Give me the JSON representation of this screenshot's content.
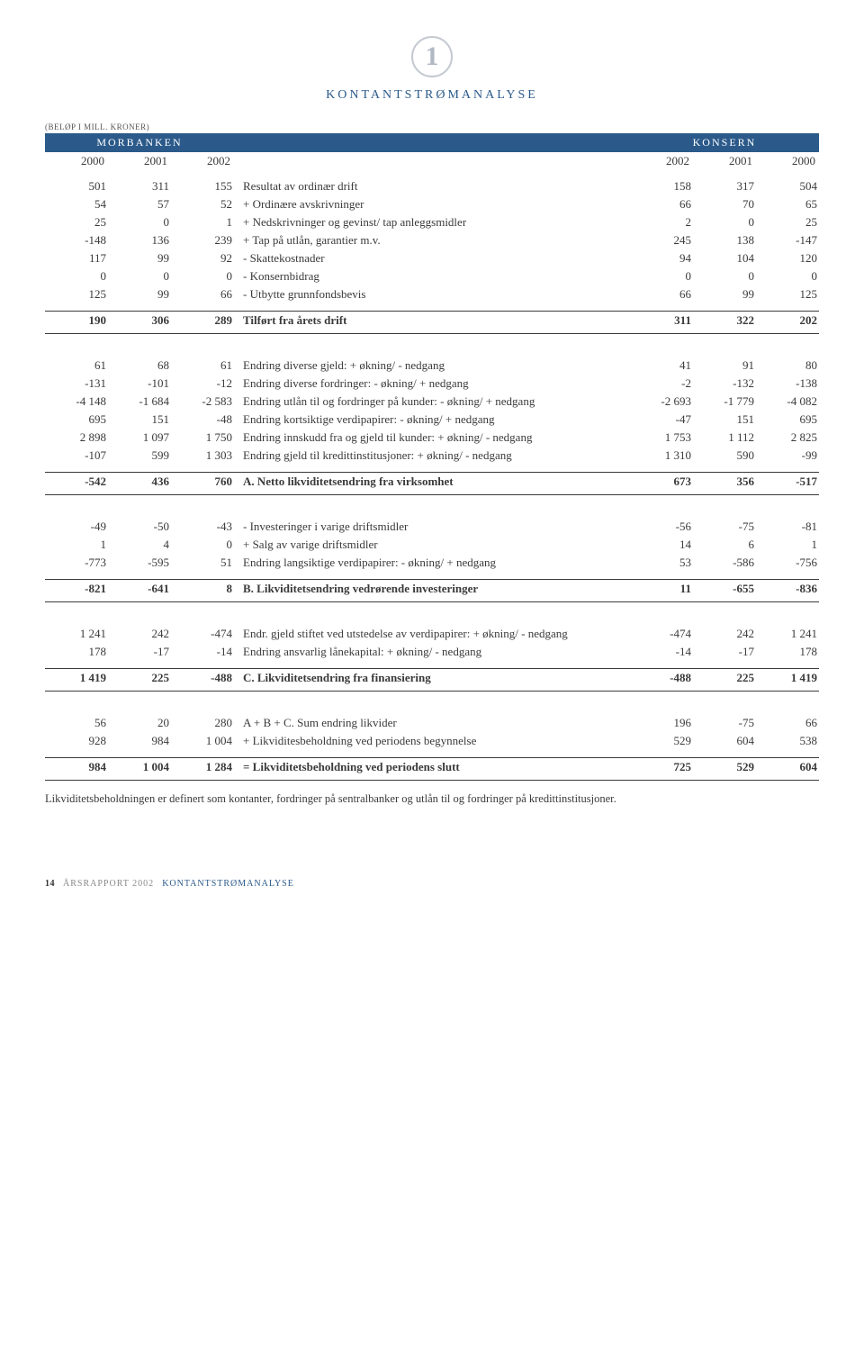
{
  "logo_char": "1",
  "title": "KONTANTSTRØMANALYSE",
  "units": "(BELØP I MILL. KRONER)",
  "bank_header": {
    "left": "MORBANKEN",
    "right": "KONSERN"
  },
  "years": {
    "m0": "2000",
    "m1": "2001",
    "m2": "2002",
    "k0": "2002",
    "k1": "2001",
    "k2": "2000"
  },
  "rows_top": [
    {
      "m": [
        "501",
        "311",
        "155"
      ],
      "label": "Resultat av ordinær drift",
      "k": [
        "158",
        "317",
        "504"
      ]
    },
    {
      "m": [
        "54",
        "57",
        "52"
      ],
      "label": "+ Ordinære avskrivninger",
      "k": [
        "66",
        "70",
        "65"
      ]
    },
    {
      "m": [
        "25",
        "0",
        "1"
      ],
      "label": "+ Nedskrivninger og gevinst/ tap anleggsmidler",
      "k": [
        "2",
        "0",
        "25"
      ]
    },
    {
      "m": [
        "-148",
        "136",
        "239"
      ],
      "label": "+ Tap på utlån, garantier m.v.",
      "k": [
        "245",
        "138",
        "-147"
      ]
    },
    {
      "m": [
        "117",
        "99",
        "92"
      ],
      "label": "- Skattekostnader",
      "k": [
        "94",
        "104",
        "120"
      ]
    },
    {
      "m": [
        "0",
        "0",
        "0"
      ],
      "label": "- Konsernbidrag",
      "k": [
        "0",
        "0",
        "0"
      ]
    },
    {
      "m": [
        "125",
        "99",
        "66"
      ],
      "label": "- Utbytte grunnfondsbevis",
      "k": [
        "66",
        "99",
        "125"
      ]
    }
  ],
  "total_top": {
    "m": [
      "190",
      "306",
      "289"
    ],
    "label": "Tilført fra årets drift",
    "k": [
      "311",
      "322",
      "202"
    ]
  },
  "rows_a": [
    {
      "m": [
        "61",
        "68",
        "61"
      ],
      "label": "Endring diverse gjeld: + økning/ - nedgang",
      "k": [
        "41",
        "91",
        "80"
      ]
    },
    {
      "m": [
        "-131",
        "-101",
        "-12"
      ],
      "label": "Endring diverse fordringer: - økning/ + nedgang",
      "k": [
        "-2",
        "-132",
        "-138"
      ]
    },
    {
      "m": [
        "-4 148",
        "-1 684",
        "-2 583"
      ],
      "label": "Endring utlån til og fordringer på kunder: - økning/ + nedgang",
      "k": [
        "-2 693",
        "-1 779",
        "-4 082"
      ]
    },
    {
      "m": [
        "695",
        "151",
        "-48"
      ],
      "label": "Endring kortsiktige verdipapirer: - økning/ + nedgang",
      "k": [
        "-47",
        "151",
        "695"
      ]
    },
    {
      "m": [
        "2 898",
        "1 097",
        "1 750"
      ],
      "label": "Endring innskudd fra og gjeld til kunder: + økning/ - nedgang",
      "k": [
        "1 753",
        "1 112",
        "2 825"
      ]
    },
    {
      "m": [
        "-107",
        "599",
        "1 303"
      ],
      "label": "Endring gjeld til kredittinstitusjoner: + økning/ - nedgang",
      "k": [
        "1 310",
        "590",
        "-99"
      ]
    }
  ],
  "total_a": {
    "m": [
      "-542",
      "436",
      "760"
    ],
    "label": "A. Netto likviditetsendring fra virksomhet",
    "k": [
      "673",
      "356",
      "-517"
    ]
  },
  "rows_b": [
    {
      "m": [
        "-49",
        "-50",
        "-43"
      ],
      "label": "- Investeringer i varige driftsmidler",
      "k": [
        "-56",
        "-75",
        "-81"
      ]
    },
    {
      "m": [
        "1",
        "4",
        "0"
      ],
      "label": "+ Salg av varige driftsmidler",
      "k": [
        "14",
        "6",
        "1"
      ]
    },
    {
      "m": [
        "-773",
        "-595",
        "51"
      ],
      "label": "Endring langsiktige verdipapirer: - økning/ + nedgang",
      "k": [
        "53",
        "-586",
        "-756"
      ]
    }
  ],
  "total_b": {
    "m": [
      "-821",
      "-641",
      "8"
    ],
    "label": "B. Likviditetsendring vedrørende investeringer",
    "k": [
      "11",
      "-655",
      "-836"
    ]
  },
  "rows_c": [
    {
      "m": [
        "1 241",
        "242",
        "-474"
      ],
      "label": "Endr. gjeld stiftet ved utstedelse av verdipapirer: + økning/ - nedgang",
      "k": [
        "-474",
        "242",
        "1 241"
      ]
    },
    {
      "m": [
        "178",
        "-17",
        "-14"
      ],
      "label": "Endring ansvarlig lånekapital: + økning/ - nedgang",
      "k": [
        "-14",
        "-17",
        "178"
      ]
    }
  ],
  "total_c": {
    "m": [
      "1 419",
      "225",
      "-488"
    ],
    "label": "C. Likviditetsendring fra finansiering",
    "k": [
      "-488",
      "225",
      "1 419"
    ]
  },
  "rows_sum": [
    {
      "m": [
        "56",
        "20",
        "280"
      ],
      "label": "A + B + C. Sum endring likvider",
      "k": [
        "196",
        "-75",
        "66"
      ]
    },
    {
      "m": [
        "928",
        "984",
        "1 004"
      ],
      "label": "+ Likviditesbeholdning ved periodens begynnelse",
      "k": [
        "529",
        "604",
        "538"
      ]
    }
  ],
  "total_sum": {
    "m": [
      "984",
      "1 004",
      "1 284"
    ],
    "label": "= Likviditetsbeholdning ved periodens slutt",
    "k": [
      "725",
      "529",
      "604"
    ]
  },
  "footnote": "Likviditetsbeholdningen er definert som kontanter, fordringer på sentralbanker og utlån til og fordringer på kredittinstitusjoner.",
  "footer": {
    "page": "14",
    "t1": "ÅRSRAPPORT 2002",
    "t2": "KONTANTSTRØMANALYSE"
  }
}
